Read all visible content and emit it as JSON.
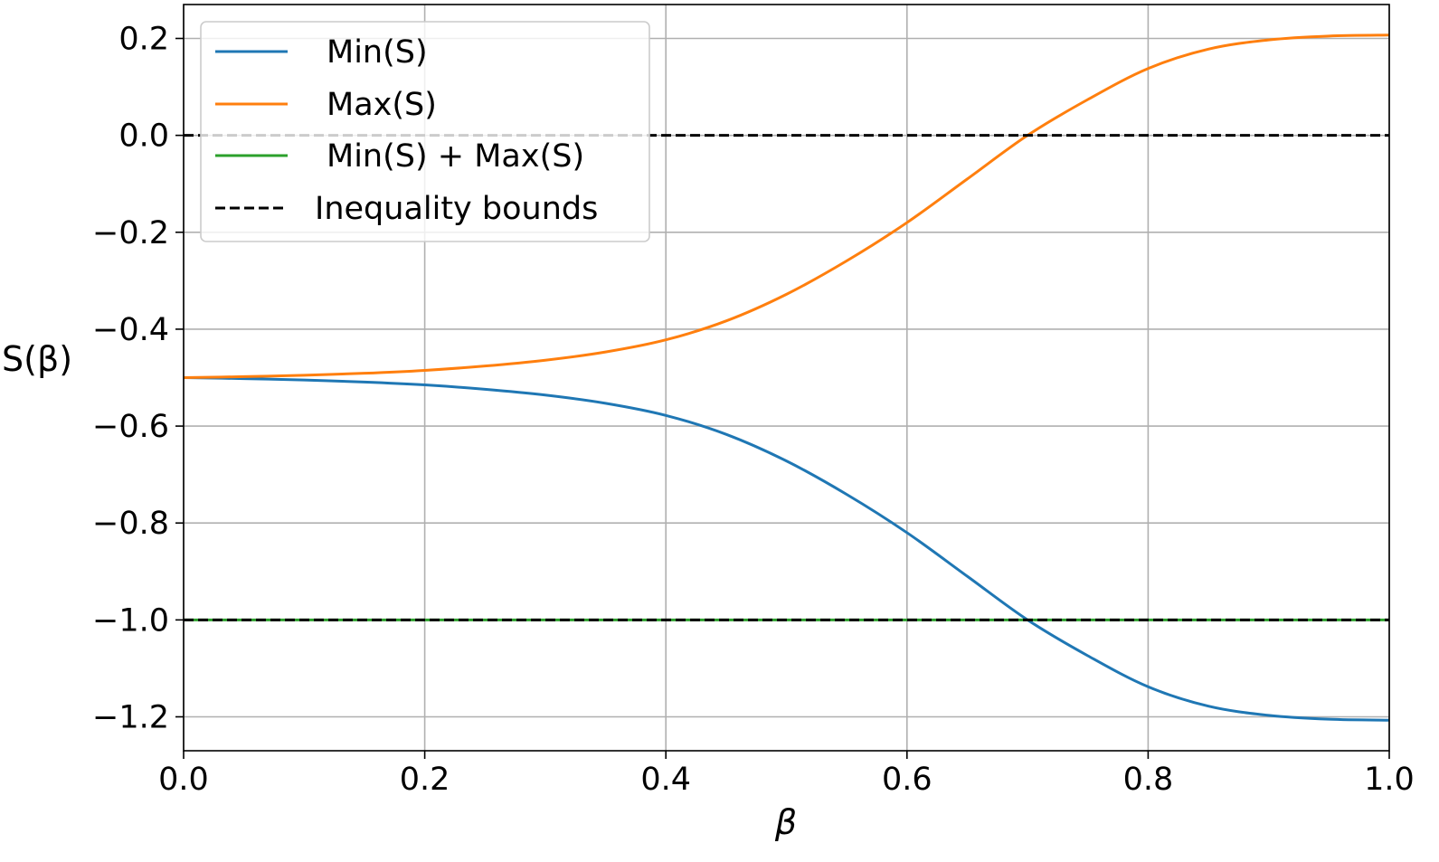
{
  "chart_data": {
    "type": "line",
    "title": "",
    "xlabel": "β",
    "ylabel": "S(β)",
    "xlim": [
      0.0,
      1.0
    ],
    "ylim": [
      -1.27,
      0.27
    ],
    "grid": true,
    "legend_position": "top-left",
    "x_ticks": [
      0.0,
      0.2,
      0.4,
      0.6,
      0.8,
      1.0
    ],
    "x_tick_labels": [
      "0.0",
      "0.2",
      "0.4",
      "0.6",
      "0.8",
      "1.0"
    ],
    "y_ticks": [
      0.2,
      0.0,
      -0.2,
      -0.4,
      -0.6,
      -0.8,
      -1.0,
      -1.2
    ],
    "y_tick_labels": [
      "0.2",
      "0.0",
      "−0.2",
      "−0.4",
      "−0.6",
      "−0.8",
      "−1.0",
      "−1.2"
    ],
    "x": [
      0.0,
      0.05,
      0.1,
      0.15,
      0.2,
      0.25,
      0.3,
      0.35,
      0.4,
      0.45,
      0.5,
      0.55,
      0.6,
      0.65,
      0.7,
      0.75,
      0.8,
      0.85,
      0.9,
      0.95,
      1.0
    ],
    "series": [
      {
        "name": "Min(S)",
        "color": "#1f77b4",
        "style": "solid",
        "values": [
          -0.5,
          -0.502,
          -0.505,
          -0.509,
          -0.515,
          -0.524,
          -0.536,
          -0.553,
          -0.578,
          -0.617,
          -0.672,
          -0.741,
          -0.82,
          -0.91,
          -1.0,
          -1.074,
          -1.138,
          -1.178,
          -1.197,
          -1.205,
          -1.207
        ]
      },
      {
        "name": "Max(S)",
        "color": "#ff7f0e",
        "style": "solid",
        "values": [
          -0.5,
          -0.498,
          -0.495,
          -0.491,
          -0.485,
          -0.476,
          -0.464,
          -0.447,
          -0.422,
          -0.383,
          -0.328,
          -0.259,
          -0.18,
          -0.09,
          0.0,
          0.074,
          0.138,
          0.178,
          0.197,
          0.205,
          0.207
        ]
      },
      {
        "name": "Min(S) + Max(S)",
        "color": "#2ca02c",
        "style": "solid",
        "values": [
          -1.0,
          -1.0,
          -1.0,
          -1.0,
          -1.0,
          -1.0,
          -1.0,
          -1.0,
          -1.0,
          -1.0,
          -1.0,
          -1.0,
          -1.0,
          -1.0,
          -1.0,
          -1.0,
          -1.0,
          -1.0,
          -1.0,
          -1.0,
          -1.0
        ]
      }
    ],
    "reference_lines": {
      "name": "Inequality bounds",
      "color": "#000000",
      "style": "dashed",
      "y_values": [
        0.0,
        -1.0
      ]
    },
    "legend": [
      "Min(S)",
      "Max(S)",
      "Min(S) + Max(S)",
      "Inequality bounds"
    ]
  }
}
